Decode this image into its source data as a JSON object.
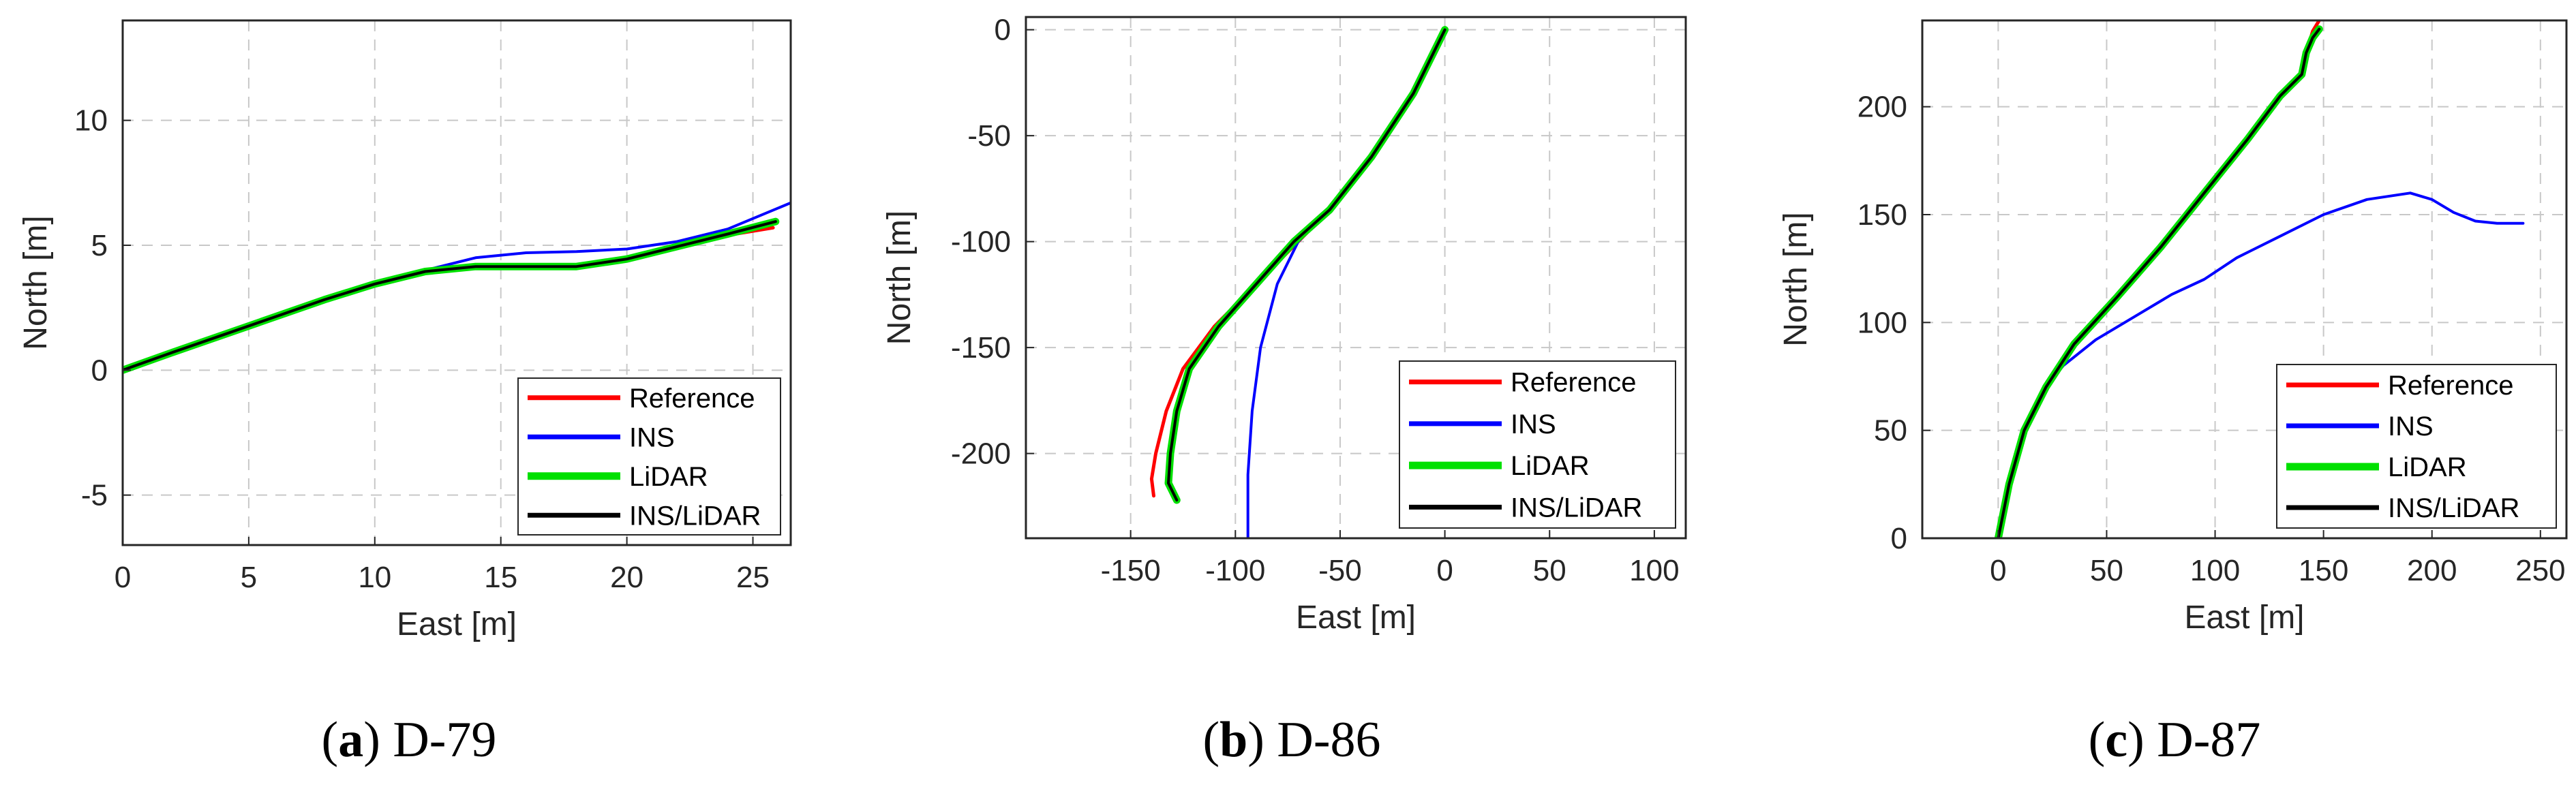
{
  "colors": {
    "reference": "#ff0000",
    "ins": "#0000ff",
    "lidar": "#00e000",
    "ins_lidar": "#000000",
    "grid": "#c8c8c8",
    "axis": "#262626"
  },
  "chart_data": [
    {
      "type": "line",
      "caption": {
        "letter": "a",
        "open": "(",
        "close": ")",
        "name": "D-79"
      },
      "xlabel": "East [m]",
      "ylabel": "North [m]",
      "xlim": [
        0,
        26.5
      ],
      "ylim": [
        -7,
        14
      ],
      "xticks": [
        0,
        5,
        10,
        15,
        20,
        25
      ],
      "xtick_labels": [
        "0",
        "5",
        "10",
        "15",
        "20",
        "25"
      ],
      "yticks": [
        -5,
        0,
        5,
        10
      ],
      "ytick_labels": [
        "-5",
        "0",
        "5",
        "10"
      ],
      "grid": true,
      "legend_position": "bottom-right",
      "series": [
        {
          "name": "Reference",
          "key": "reference",
          "width": 5,
          "points": [
            [
              0,
              0
            ],
            [
              2,
              0.7
            ],
            [
              4,
              1.4
            ],
            [
              6,
              2.1
            ],
            [
              8,
              2.8
            ],
            [
              10,
              3.4
            ],
            [
              12,
              3.9
            ],
            [
              14,
              4.15
            ],
            [
              16,
              4.2
            ],
            [
              18,
              4.2
            ],
            [
              20,
              4.5
            ],
            [
              22,
              4.95
            ],
            [
              24,
              5.4
            ],
            [
              25.8,
              5.7
            ]
          ]
        },
        {
          "name": "INS",
          "key": "ins",
          "width": 4,
          "points": [
            [
              0,
              0
            ],
            [
              2,
              0.75
            ],
            [
              4,
              1.45
            ],
            [
              6,
              2.15
            ],
            [
              8,
              2.85
            ],
            [
              10,
              3.5
            ],
            [
              12,
              4.0
            ],
            [
              14,
              4.5
            ],
            [
              16,
              4.7
            ],
            [
              18,
              4.75
            ],
            [
              20,
              4.85
            ],
            [
              22,
              5.15
            ],
            [
              24,
              5.65
            ],
            [
              26.5,
              6.7
            ]
          ]
        },
        {
          "name": "LiDAR",
          "key": "lidar",
          "width": 11,
          "points": [
            [
              0,
              0
            ],
            [
              2,
              0.72
            ],
            [
              4,
              1.42
            ],
            [
              6,
              2.12
            ],
            [
              8,
              2.82
            ],
            [
              10,
              3.45
            ],
            [
              12,
              3.95
            ],
            [
              14,
              4.15
            ],
            [
              16,
              4.15
            ],
            [
              18,
              4.15
            ],
            [
              20,
              4.45
            ],
            [
              22,
              4.95
            ],
            [
              24,
              5.45
            ],
            [
              25.9,
              5.95
            ]
          ]
        },
        {
          "name": "INS/LiDAR",
          "key": "ins_lidar",
          "width": 4,
          "points": [
            [
              0,
              0
            ],
            [
              2,
              0.72
            ],
            [
              4,
              1.42
            ],
            [
              6,
              2.12
            ],
            [
              8,
              2.82
            ],
            [
              10,
              3.45
            ],
            [
              12,
              3.95
            ],
            [
              14,
              4.15
            ],
            [
              16,
              4.15
            ],
            [
              18,
              4.15
            ],
            [
              20,
              4.45
            ],
            [
              22,
              4.95
            ],
            [
              24,
              5.45
            ],
            [
              25.9,
              5.95
            ]
          ]
        }
      ]
    },
    {
      "type": "line",
      "caption": {
        "letter": "b",
        "open": "(",
        "close": ")",
        "name": "D-86"
      },
      "xlabel": "East [m]",
      "ylabel": "North [m]",
      "xlim": [
        -200,
        115
      ],
      "ylim": [
        -240,
        6
      ],
      "xticks": [
        -150,
        -100,
        -50,
        0,
        50,
        100
      ],
      "xtick_labels": [
        "-150",
        "-100",
        "-50",
        "0",
        "50",
        "100"
      ],
      "yticks": [
        -200,
        -150,
        -100,
        -50,
        0
      ],
      "ytick_labels": [
        "-200",
        "-150",
        "-100",
        "-50",
        "0"
      ],
      "grid": true,
      "legend_position": "bottom-right",
      "series": [
        {
          "name": "Reference",
          "key": "reference",
          "width": 5,
          "points": [
            [
              0,
              0
            ],
            [
              -15,
              -30
            ],
            [
              -35,
              -60
            ],
            [
              -55,
              -85
            ],
            [
              -70,
              -100
            ],
            [
              -90,
              -120
            ],
            [
              -110,
              -140
            ],
            [
              -125,
              -160
            ],
            [
              -133,
              -180
            ],
            [
              -138,
              -200
            ],
            [
              -140,
              -212
            ],
            [
              -139,
              -220
            ]
          ]
        },
        {
          "name": "INS",
          "key": "ins",
          "width": 4,
          "points": [
            [
              0,
              0
            ],
            [
              -15,
              -30
            ],
            [
              -35,
              -60
            ],
            [
              -55,
              -85
            ],
            [
              -70,
              -100
            ],
            [
              -80,
              -120
            ],
            [
              -88,
              -150
            ],
            [
              -92,
              -180
            ],
            [
              -94,
              -210
            ],
            [
              -94,
              -240
            ]
          ]
        },
        {
          "name": "LiDAR",
          "key": "lidar",
          "width": 11,
          "points": [
            [
              0,
              0
            ],
            [
              -15,
              -30
            ],
            [
              -35,
              -60
            ],
            [
              -55,
              -85
            ],
            [
              -72,
              -100
            ],
            [
              -90,
              -120
            ],
            [
              -108,
              -140
            ],
            [
              -122,
              -160
            ],
            [
              -128,
              -180
            ],
            [
              -131,
              -200
            ],
            [
              -132,
              -214
            ],
            [
              -128,
              -222
            ]
          ]
        },
        {
          "name": "INS/LiDAR",
          "key": "ins_lidar",
          "width": 4,
          "points": [
            [
              0,
              0
            ],
            [
              -15,
              -30
            ],
            [
              -35,
              -60
            ],
            [
              -55,
              -85
            ],
            [
              -72,
              -100
            ],
            [
              -90,
              -120
            ],
            [
              -108,
              -140
            ],
            [
              -122,
              -160
            ],
            [
              -128,
              -180
            ],
            [
              -131,
              -200
            ],
            [
              -132,
              -214
            ],
            [
              -128,
              -222
            ]
          ]
        }
      ]
    },
    {
      "type": "line",
      "caption": {
        "letter": "c",
        "open": "(",
        "close": ")",
        "name": "D-87"
      },
      "xlabel": "East [m]",
      "ylabel": "North [m]",
      "xlim": [
        -35,
        262
      ],
      "ylim": [
        0,
        240
      ],
      "xticks": [
        0,
        50,
        100,
        150,
        200,
        250
      ],
      "xtick_labels": [
        "0",
        "50",
        "100",
        "150",
        "200",
        "250"
      ],
      "yticks": [
        0,
        50,
        100,
        150,
        200
      ],
      "ytick_labels": [
        "0",
        "50",
        "100",
        "150",
        "200"
      ],
      "grid": true,
      "legend_position": "bottom-right",
      "series": [
        {
          "name": "Reference",
          "key": "reference",
          "width": 5,
          "points": [
            [
              0,
              0
            ],
            [
              5,
              25
            ],
            [
              12,
              50
            ],
            [
              22,
              70
            ],
            [
              35,
              90
            ],
            [
              55,
              112
            ],
            [
              75,
              135
            ],
            [
              95,
              160
            ],
            [
              115,
              185
            ],
            [
              130,
              205
            ],
            [
              140,
              215
            ],
            [
              142,
              225
            ],
            [
              145,
              235
            ],
            [
              148,
              240
            ]
          ]
        },
        {
          "name": "INS",
          "key": "ins",
          "width": 4,
          "points": [
            [
              0,
              0
            ],
            [
              5,
              25
            ],
            [
              12,
              50
            ],
            [
              22,
              70
            ],
            [
              30,
              80
            ],
            [
              45,
              92
            ],
            [
              65,
              104
            ],
            [
              80,
              113
            ],
            [
              95,
              120
            ],
            [
              110,
              130
            ],
            [
              130,
              140
            ],
            [
              150,
              150
            ],
            [
              170,
              157
            ],
            [
              190,
              160
            ],
            [
              200,
              157
            ],
            [
              210,
              151
            ],
            [
              220,
              147
            ],
            [
              230,
              146
            ],
            [
              242,
              146
            ]
          ]
        },
        {
          "name": "LiDAR",
          "key": "lidar",
          "width": 11,
          "points": [
            [
              0,
              0
            ],
            [
              5,
              25
            ],
            [
              12,
              50
            ],
            [
              22,
              70
            ],
            [
              35,
              90
            ],
            [
              55,
              112
            ],
            [
              75,
              135
            ],
            [
              95,
              160
            ],
            [
              115,
              185
            ],
            [
              130,
              205
            ],
            [
              140,
              215
            ],
            [
              142,
              225
            ],
            [
              145,
              232
            ],
            [
              148,
              236
            ]
          ]
        },
        {
          "name": "INS/LiDAR",
          "key": "ins_lidar",
          "width": 4,
          "points": [
            [
              0,
              0
            ],
            [
              5,
              25
            ],
            [
              12,
              50
            ],
            [
              22,
              70
            ],
            [
              35,
              90
            ],
            [
              55,
              112
            ],
            [
              75,
              135
            ],
            [
              95,
              160
            ],
            [
              115,
              185
            ],
            [
              130,
              205
            ],
            [
              140,
              215
            ],
            [
              142,
              225
            ],
            [
              145,
              232
            ],
            [
              148,
              236
            ]
          ]
        }
      ]
    }
  ]
}
